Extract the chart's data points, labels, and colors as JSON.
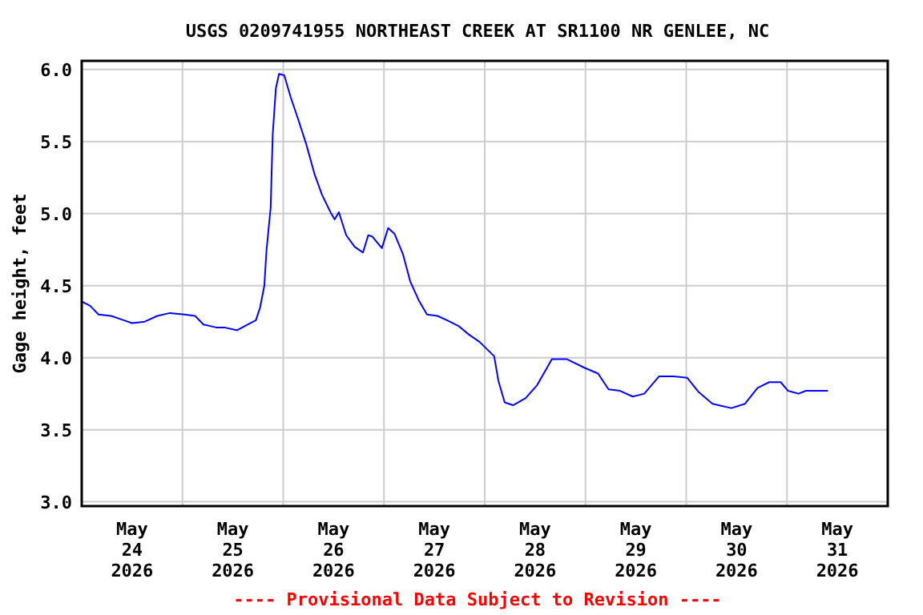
{
  "chart_data": {
    "type": "line",
    "title": "USGS 0209741955 NORTHEAST CREEK AT SR1100 NR GENLEE, NC",
    "ylabel": "Gage height, feet",
    "annotations": [
      "---- Provisional Data Subject to Revision ----"
    ],
    "xlim": [
      "2026-05-24T00:00",
      "2026-06-01T00:00"
    ],
    "xticks": [
      {
        "value": "2026-05-24T12:00",
        "label": "May\n24\n2026"
      },
      {
        "value": "2026-05-25T00:00",
        "label": null
      },
      {
        "value": "2026-05-25T12:00",
        "label": "May\n25\n2026"
      },
      {
        "value": "2026-05-26T00:00",
        "label": null
      },
      {
        "value": "2026-05-26T12:00",
        "label": "May\n26\n2026"
      },
      {
        "value": "2026-05-27T00:00",
        "label": null
      },
      {
        "value": "2026-05-27T12:00",
        "label": "May\n27\n2026"
      },
      {
        "value": "2026-05-28T00:00",
        "label": null
      },
      {
        "value": "2026-05-28T12:00",
        "label": "May\n28\n2026"
      },
      {
        "value": "2026-05-29T00:00",
        "label": null
      },
      {
        "value": "2026-05-29T12:00",
        "label": "May\n29\n2026"
      },
      {
        "value": "2026-05-30T00:00",
        "label": null
      },
      {
        "value": "2026-05-30T12:00",
        "label": "May\n30\n2026"
      },
      {
        "value": "2026-05-31T00:00",
        "label": null
      },
      {
        "value": "2026-05-31T12:00",
        "label": "May\n31\n2026"
      }
    ],
    "ylim": [
      2.97,
      6.06
    ],
    "yticks": [
      {
        "value": 3.0,
        "label": "3.0"
      },
      3.5,
      {
        "value": 4.0,
        "label": "4.0"
      },
      4.5,
      {
        "value": 5.0,
        "label": "5.0"
      },
      5.5,
      {
        "value": 6.0,
        "label": "6.0"
      }
    ],
    "grid": true,
    "marker": "none",
    "line_style": "solid",
    "x": [
      "2026-05-24T00:00",
      "2026-05-24T02:00",
      "2026-05-24T04:00",
      "2026-05-24T07:00",
      "2026-05-24T10:00",
      "2026-05-24T12:00",
      "2026-05-24T15:00",
      "2026-05-24T18:00",
      "2026-05-24T21:00",
      "2026-05-25T00:30",
      "2026-05-25T03:00",
      "2026-05-25T05:00",
      "2026-05-25T08:00",
      "2026-05-25T10:00",
      "2026-05-25T13:00",
      "2026-05-25T15:30",
      "2026-05-25T17:30",
      "2026-05-25T18:30",
      "2026-05-25T19:30",
      "2026-05-25T20:00",
      "2026-05-25T21:00",
      "2026-05-25T21:30",
      "2026-05-25T22:15",
      "2026-05-25T23:00",
      "2026-05-26T00:15",
      "2026-05-26T01:45",
      "2026-05-26T03:30",
      "2026-05-26T05:30",
      "2026-05-26T07:30",
      "2026-05-26T09:15",
      "2026-05-26T11:15",
      "2026-05-26T12:15",
      "2026-05-26T13:15",
      "2026-05-26T15:00",
      "2026-05-26T17:00",
      "2026-05-26T19:00",
      "2026-05-26T20:15",
      "2026-05-26T21:15",
      "2026-05-26T23:30",
      "2026-05-27T01:00",
      "2026-05-27T02:30",
      "2026-05-27T04:30",
      "2026-05-27T06:15",
      "2026-05-27T08:15",
      "2026-05-27T10:15",
      "2026-05-27T12:45",
      "2026-05-27T15:00",
      "2026-05-27T17:45",
      "2026-05-27T20:15",
      "2026-05-27T22:45",
      "2026-05-28T02:15",
      "2026-05-28T03:15",
      "2026-05-28T04:45",
      "2026-05-28T06:45",
      "2026-05-28T09:45",
      "2026-05-28T12:30",
      "2026-05-28T16:00",
      "2026-05-28T19:30",
      "2026-05-28T23:45",
      "2026-05-29T03:00",
      "2026-05-29T05:30",
      "2026-05-29T08:15",
      "2026-05-29T11:15",
      "2026-05-29T14:00",
      "2026-05-29T17:30",
      "2026-05-29T21:00",
      "2026-05-30T00:15",
      "2026-05-30T03:00",
      "2026-05-30T06:15",
      "2026-05-30T10:45",
      "2026-05-30T14:00",
      "2026-05-30T17:00",
      "2026-05-30T19:45",
      "2026-05-30T22:30",
      "2026-05-31T00:15",
      "2026-05-31T02:45",
      "2026-05-31T04:30",
      "2026-05-31T09:45"
    ],
    "series": [
      {
        "color": "#0000ff",
        "values": [
          4.39,
          4.36,
          4.3,
          4.29,
          4.26,
          4.24,
          4.25,
          4.29,
          4.31,
          4.3,
          4.29,
          4.23,
          4.21,
          4.21,
          4.19,
          4.23,
          4.26,
          4.35,
          4.5,
          4.74,
          5.04,
          5.55,
          5.87,
          5.97,
          5.96,
          5.81,
          5.66,
          5.48,
          5.27,
          5.13,
          5.01,
          4.96,
          5.01,
          4.85,
          4.77,
          4.73,
          4.85,
          4.84,
          4.76,
          4.9,
          4.86,
          4.72,
          4.53,
          4.4,
          4.3,
          4.29,
          4.26,
          4.22,
          4.16,
          4.11,
          4.01,
          3.84,
          3.69,
          3.67,
          3.72,
          3.81,
          3.99,
          3.99,
          3.93,
          3.89,
          3.78,
          3.77,
          3.73,
          3.75,
          3.87,
          3.87,
          3.86,
          3.76,
          3.68,
          3.65,
          3.68,
          3.79,
          3.83,
          3.83,
          3.77,
          3.75,
          3.77,
          3.77
        ]
      }
    ]
  }
}
